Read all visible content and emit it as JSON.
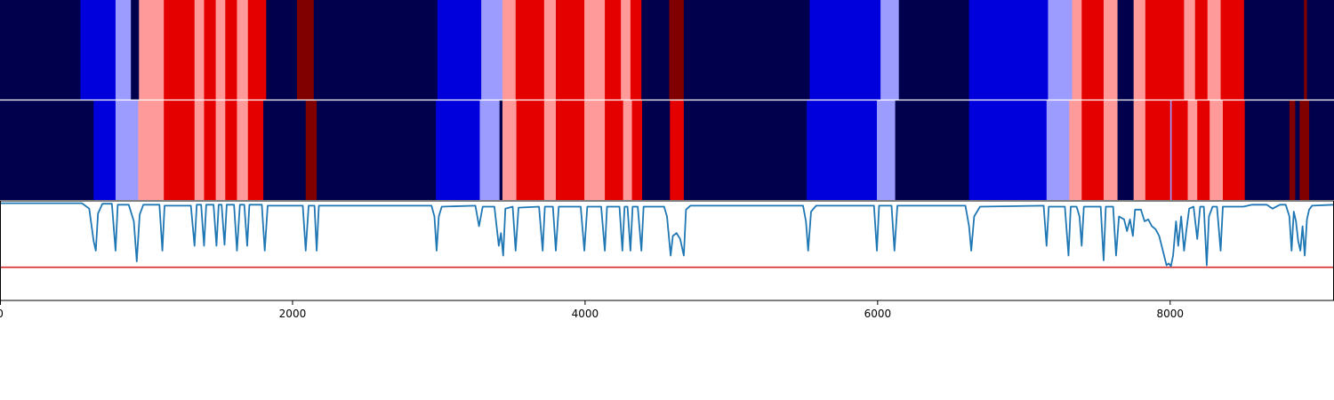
{
  "chart_data": {
    "type": "heatmap",
    "xlim": [
      0,
      9120
    ],
    "x_ticks": [
      0,
      2000,
      4000,
      6000,
      8000
    ],
    "x_tick_labels": [
      "0",
      "2000",
      "4000",
      "6000",
      "8000"
    ],
    "palette": {
      "0": "#00004c",
      "1": "#0000dd",
      "2": "#9c9cff",
      "3": "#ff9a9a",
      "4": "#e50000",
      "5": "#800000"
    },
    "tracks": [
      {
        "segments": [
          [
            0,
            550,
            0
          ],
          [
            550,
            790,
            1
          ],
          [
            790,
            895,
            2
          ],
          [
            895,
            950,
            0
          ],
          [
            950,
            1120,
            3
          ],
          [
            1120,
            1330,
            4
          ],
          [
            1330,
            1395,
            3
          ],
          [
            1395,
            1475,
            4
          ],
          [
            1475,
            1540,
            3
          ],
          [
            1540,
            1620,
            4
          ],
          [
            1620,
            1695,
            3
          ],
          [
            1695,
            1820,
            4
          ],
          [
            1820,
            2030,
            0
          ],
          [
            2030,
            2145,
            5
          ],
          [
            2145,
            2990,
            0
          ],
          [
            2990,
            3290,
            1
          ],
          [
            3290,
            3435,
            2
          ],
          [
            3435,
            3525,
            3
          ],
          [
            3525,
            3720,
            4
          ],
          [
            3720,
            3800,
            3
          ],
          [
            3800,
            3995,
            4
          ],
          [
            3995,
            4135,
            3
          ],
          [
            4135,
            4245,
            4
          ],
          [
            4245,
            4310,
            3
          ],
          [
            4310,
            4385,
            4
          ],
          [
            4385,
            4575,
            0
          ],
          [
            4575,
            4675,
            5
          ],
          [
            4675,
            5535,
            0
          ],
          [
            5535,
            6020,
            1
          ],
          [
            6020,
            6145,
            2
          ],
          [
            6145,
            6625,
            0
          ],
          [
            6625,
            7165,
            1
          ],
          [
            7165,
            7330,
            2
          ],
          [
            7330,
            7395,
            3
          ],
          [
            7395,
            7545,
            4
          ],
          [
            7545,
            7640,
            3
          ],
          [
            7640,
            7750,
            0
          ],
          [
            7750,
            7830,
            3
          ],
          [
            7830,
            8095,
            4
          ],
          [
            8095,
            8170,
            3
          ],
          [
            8170,
            8255,
            4
          ],
          [
            8255,
            8345,
            3
          ],
          [
            8345,
            8505,
            4
          ],
          [
            8505,
            8915,
            0
          ],
          [
            8915,
            8935,
            5
          ],
          [
            8935,
            9120,
            0
          ]
        ]
      },
      {
        "segments": [
          [
            0,
            640,
            0
          ],
          [
            640,
            790,
            1
          ],
          [
            790,
            945,
            2
          ],
          [
            945,
            1120,
            3
          ],
          [
            1120,
            1330,
            4
          ],
          [
            1330,
            1395,
            3
          ],
          [
            1395,
            1475,
            4
          ],
          [
            1475,
            1540,
            3
          ],
          [
            1540,
            1620,
            4
          ],
          [
            1620,
            1695,
            3
          ],
          [
            1695,
            1800,
            4
          ],
          [
            1800,
            2090,
            0
          ],
          [
            2090,
            2165,
            5
          ],
          [
            2165,
            2980,
            0
          ],
          [
            2980,
            3280,
            1
          ],
          [
            3280,
            3415,
            2
          ],
          [
            3415,
            3435,
            0
          ],
          [
            3435,
            3530,
            3
          ],
          [
            3530,
            3720,
            4
          ],
          [
            3720,
            3800,
            3
          ],
          [
            3800,
            3995,
            4
          ],
          [
            3995,
            4135,
            3
          ],
          [
            4135,
            4260,
            4
          ],
          [
            4260,
            4320,
            3
          ],
          [
            4320,
            4390,
            4
          ],
          [
            4390,
            4580,
            0
          ],
          [
            4580,
            4675,
            4
          ],
          [
            4675,
            5515,
            0
          ],
          [
            5515,
            5995,
            1
          ],
          [
            5995,
            6120,
            2
          ],
          [
            6120,
            6625,
            0
          ],
          [
            6625,
            7155,
            1
          ],
          [
            7155,
            7310,
            2
          ],
          [
            7310,
            7395,
            3
          ],
          [
            7395,
            7545,
            4
          ],
          [
            7545,
            7640,
            3
          ],
          [
            7640,
            7750,
            0
          ],
          [
            7750,
            7830,
            3
          ],
          [
            7830,
            8000,
            4
          ],
          [
            8000,
            8010,
            2
          ],
          [
            8010,
            8120,
            4
          ],
          [
            8120,
            8185,
            3
          ],
          [
            8185,
            8270,
            4
          ],
          [
            8270,
            8360,
            3
          ],
          [
            8360,
            8510,
            4
          ],
          [
            8510,
            8815,
            0
          ],
          [
            8815,
            8855,
            5
          ],
          [
            8855,
            8885,
            0
          ],
          [
            8885,
            8950,
            5
          ],
          [
            8950,
            9120,
            0
          ]
        ]
      }
    ],
    "line_panel": {
      "series_color": "#1f77b4",
      "threshold": 0.33,
      "threshold_color": "#d62728",
      "ylim": [
        0,
        1
      ],
      "baseline": 0.985,
      "points": [
        [
          0,
          0.985
        ],
        [
          560,
          0.985
        ],
        [
          610,
          0.93
        ],
        [
          640,
          0.6
        ],
        [
          655,
          0.5
        ],
        [
          670,
          0.88
        ],
        [
          700,
          0.98
        ],
        [
          765,
          0.98
        ],
        [
          790,
          0.5
        ],
        [
          805,
          0.97
        ],
        [
          880,
          0.97
        ],
        [
          915,
          0.8
        ],
        [
          935,
          0.39
        ],
        [
          955,
          0.87
        ],
        [
          980,
          0.97
        ],
        [
          1090,
          0.97
        ],
        [
          1110,
          0.5
        ],
        [
          1125,
          0.96
        ],
        [
          1305,
          0.96
        ],
        [
          1330,
          0.55
        ],
        [
          1345,
          0.97
        ],
        [
          1375,
          0.97
        ],
        [
          1395,
          0.55
        ],
        [
          1410,
          0.97
        ],
        [
          1460,
          0.97
        ],
        [
          1480,
          0.55
        ],
        [
          1495,
          0.97
        ],
        [
          1515,
          0.97
        ],
        [
          1535,
          0.56
        ],
        [
          1550,
          0.97
        ],
        [
          1600,
          0.97
        ],
        [
          1620,
          0.5
        ],
        [
          1640,
          0.97
        ],
        [
          1670,
          0.97
        ],
        [
          1690,
          0.55
        ],
        [
          1705,
          0.97
        ],
        [
          1790,
          0.97
        ],
        [
          1810,
          0.5
        ],
        [
          1830,
          0.96
        ],
        [
          2070,
          0.96
        ],
        [
          2090,
          0.5
        ],
        [
          2110,
          0.96
        ],
        [
          2150,
          0.96
        ],
        [
          2165,
          0.5
        ],
        [
          2180,
          0.96
        ],
        [
          2950,
          0.96
        ],
        [
          2970,
          0.85
        ],
        [
          2985,
          0.5
        ],
        [
          3000,
          0.85
        ],
        [
          3020,
          0.95
        ],
        [
          3250,
          0.96
        ],
        [
          3275,
          0.75
        ],
        [
          3300,
          0.95
        ],
        [
          3380,
          0.95
        ],
        [
          3410,
          0.55
        ],
        [
          3425,
          0.68
        ],
        [
          3440,
          0.45
        ],
        [
          3455,
          0.93
        ],
        [
          3505,
          0.95
        ],
        [
          3525,
          0.5
        ],
        [
          3545,
          0.94
        ],
        [
          3685,
          0.95
        ],
        [
          3710,
          0.5
        ],
        [
          3725,
          0.95
        ],
        [
          3780,
          0.95
        ],
        [
          3800,
          0.5
        ],
        [
          3820,
          0.95
        ],
        [
          3970,
          0.95
        ],
        [
          3995,
          0.5
        ],
        [
          4015,
          0.95
        ],
        [
          4110,
          0.95
        ],
        [
          4135,
          0.5
        ],
        [
          4150,
          0.95
        ],
        [
          4235,
          0.95
        ],
        [
          4255,
          0.5
        ],
        [
          4270,
          0.95
        ],
        [
          4290,
          0.95
        ],
        [
          4310,
          0.5
        ],
        [
          4325,
          0.95
        ],
        [
          4360,
          0.95
        ],
        [
          4385,
          0.5
        ],
        [
          4400,
          0.95
        ],
        [
          4540,
          0.95
        ],
        [
          4560,
          0.85
        ],
        [
          4585,
          0.45
        ],
        [
          4600,
          0.65
        ],
        [
          4625,
          0.68
        ],
        [
          4650,
          0.62
        ],
        [
          4675,
          0.45
        ],
        [
          4690,
          0.92
        ],
        [
          4720,
          0.96
        ],
        [
          5490,
          0.96
        ],
        [
          5510,
          0.8
        ],
        [
          5525,
          0.5
        ],
        [
          5545,
          0.9
        ],
        [
          5580,
          0.96
        ],
        [
          5975,
          0.96
        ],
        [
          5995,
          0.5
        ],
        [
          6010,
          0.96
        ],
        [
          6095,
          0.96
        ],
        [
          6115,
          0.5
        ],
        [
          6135,
          0.96
        ],
        [
          6600,
          0.96
        ],
        [
          6625,
          0.75
        ],
        [
          6640,
          0.5
        ],
        [
          6660,
          0.85
        ],
        [
          6700,
          0.95
        ],
        [
          7135,
          0.96
        ],
        [
          7155,
          0.55
        ],
        [
          7170,
          0.95
        ],
        [
          7280,
          0.95
        ],
        [
          7305,
          0.45
        ],
        [
          7320,
          0.95
        ],
        [
          7360,
          0.95
        ],
        [
          7380,
          0.85
        ],
        [
          7395,
          0.55
        ],
        [
          7410,
          0.95
        ],
        [
          7525,
          0.95
        ],
        [
          7545,
          0.4
        ],
        [
          7560,
          0.95
        ],
        [
          7610,
          0.95
        ],
        [
          7630,
          0.45
        ],
        [
          7650,
          0.85
        ],
        [
          7685,
          0.82
        ],
        [
          7705,
          0.7
        ],
        [
          7725,
          0.82
        ],
        [
          7745,
          0.65
        ],
        [
          7760,
          0.92
        ],
        [
          7800,
          0.92
        ],
        [
          7825,
          0.8
        ],
        [
          7850,
          0.82
        ],
        [
          7875,
          0.75
        ],
        [
          7900,
          0.72
        ],
        [
          7925,
          0.65
        ],
        [
          7950,
          0.5
        ],
        [
          7975,
          0.35
        ],
        [
          7990,
          0.37
        ],
        [
          8005,
          0.34
        ],
        [
          8020,
          0.45
        ],
        [
          8040,
          0.8
        ],
        [
          8055,
          0.55
        ],
        [
          8075,
          0.85
        ],
        [
          8095,
          0.5
        ],
        [
          8110,
          0.7
        ],
        [
          8130,
          0.93
        ],
        [
          8160,
          0.95
        ],
        [
          8185,
          0.62
        ],
        [
          8205,
          0.95
        ],
        [
          8230,
          0.95
        ],
        [
          8250,
          0.35
        ],
        [
          8265,
          0.85
        ],
        [
          8290,
          0.95
        ],
        [
          8320,
          0.95
        ],
        [
          8345,
          0.5
        ],
        [
          8360,
          0.95
        ],
        [
          8500,
          0.95
        ],
        [
          8560,
          0.97
        ],
        [
          8660,
          0.97
        ],
        [
          8700,
          0.93
        ],
        [
          8750,
          0.97
        ],
        [
          8790,
          0.97
        ],
        [
          8815,
          0.85
        ],
        [
          8830,
          0.5
        ],
        [
          8845,
          0.9
        ],
        [
          8860,
          0.8
        ],
        [
          8875,
          0.6
        ],
        [
          8890,
          0.5
        ],
        [
          8905,
          0.75
        ],
        [
          8920,
          0.45
        ],
        [
          8935,
          0.82
        ],
        [
          8950,
          0.92
        ],
        [
          8970,
          0.96
        ],
        [
          9120,
          0.97
        ]
      ]
    }
  }
}
